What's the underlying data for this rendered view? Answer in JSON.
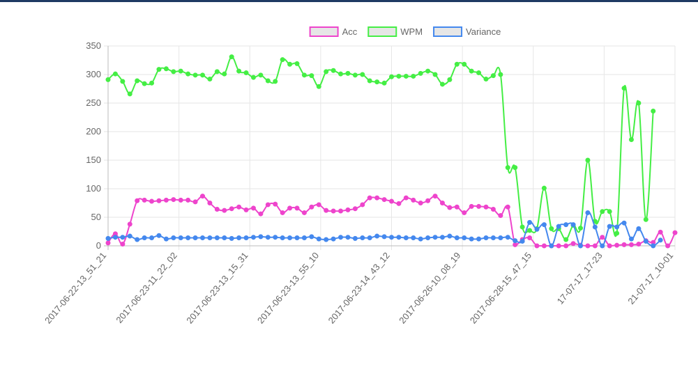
{
  "chart_data": {
    "type": "line",
    "title": "",
    "xlabel": "",
    "ylabel": "",
    "ylim": [
      0,
      350
    ],
    "yticks": [
      0,
      50,
      100,
      150,
      200,
      250,
      300,
      350
    ],
    "grid": true,
    "legend_position": "top",
    "x_tick_labels": [
      "2017-06-22-13_51_21",
      "2017-06-23-11_22_02",
      "2017-06-23-13_15_31",
      "2017-06-23-13_55_10",
      "2017-06-23-14_43_12",
      "2017-06-26-10_08_19",
      "2017-06-28-15_47_15",
      "17-07-17_17-23",
      "21-07-17_10-01"
    ],
    "series": [
      {
        "name": "Acc",
        "color": "#ee44cc",
        "values": [
          5,
          21,
          3,
          38,
          79,
          80,
          78,
          79,
          80,
          81,
          80,
          80,
          77,
          87,
          75,
          64,
          62,
          65,
          68,
          63,
          66,
          56,
          72,
          73,
          58,
          66,
          66,
          58,
          68,
          72,
          62,
          61,
          61,
          63,
          65,
          72,
          84,
          84,
          81,
          78,
          74,
          84,
          80,
          75,
          79,
          87,
          75,
          67,
          68,
          58,
          69,
          69,
          68,
          64,
          53,
          68,
          2,
          11,
          14,
          0,
          0,
          0,
          0,
          0,
          4,
          1,
          0,
          0,
          15,
          0,
          1,
          2,
          2,
          3,
          9,
          6,
          24,
          0,
          23
        ]
      },
      {
        "name": "WPM",
        "color": "#44ee44",
        "values": [
          291,
          301,
          288,
          266,
          289,
          284,
          285,
          309,
          310,
          305,
          306,
          301,
          299,
          299,
          292,
          305,
          301,
          331,
          306,
          303,
          295,
          299,
          289,
          288,
          326,
          318,
          319,
          299,
          298,
          279,
          305,
          307,
          301,
          302,
          299,
          300,
          289,
          287,
          285,
          296,
          297,
          297,
          297,
          302,
          306,
          300,
          283,
          291,
          318,
          318,
          306,
          303,
          292,
          298,
          300,
          137,
          137,
          33,
          27,
          30,
          101,
          30,
          30,
          11,
          36,
          31,
          150,
          43,
          60,
          60,
          22,
          276,
          186,
          250,
          46,
          236
        ]
      },
      {
        "name": "Variance",
        "color": "#4488ee",
        "values": [
          13,
          15,
          15,
          17,
          11,
          14,
          14,
          18,
          12,
          14,
          14,
          14,
          14,
          14,
          14,
          14,
          14,
          13,
          14,
          14,
          15,
          16,
          15,
          15,
          14,
          14,
          14,
          14,
          16,
          12,
          11,
          12,
          15,
          15,
          13,
          14,
          14,
          17,
          16,
          15,
          15,
          14,
          14,
          12,
          14,
          15,
          15,
          17,
          14,
          14,
          12,
          12,
          14,
          14,
          14,
          15,
          9,
          8,
          41,
          29,
          37,
          0,
          34,
          37,
          37,
          0,
          58,
          33,
          0,
          34,
          33,
          40,
          12,
          30,
          8,
          0,
          10
        ]
      }
    ]
  }
}
